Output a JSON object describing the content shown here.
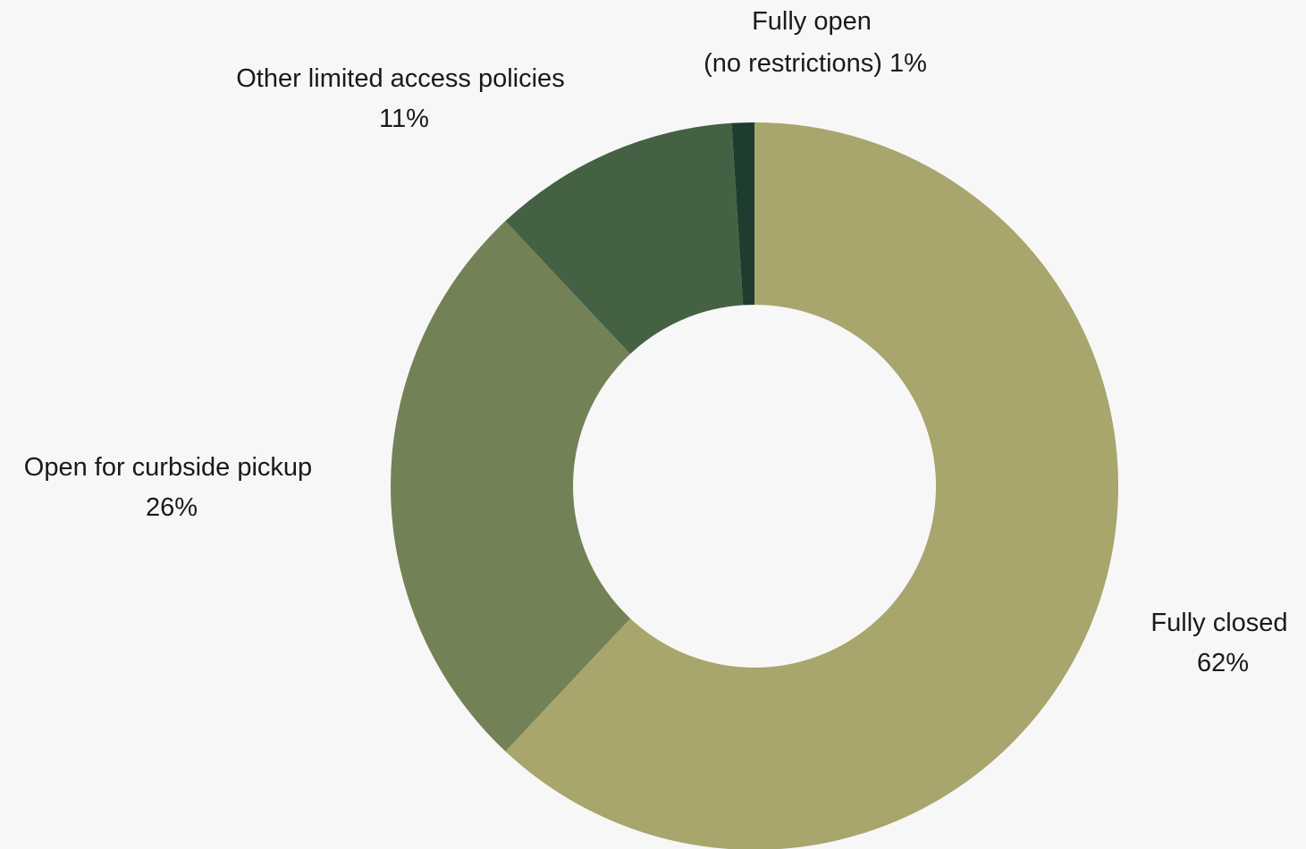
{
  "chart_data": {
    "type": "pie",
    "donut": true,
    "title": "",
    "colors": {
      "Fully closed": "#a8a56d",
      "Open for curbside pickup": "#738156",
      "Other limited access policies": "#446144",
      "Fully open (no restrictions)": "#1f3d2f"
    },
    "slices": [
      {
        "name": "Fully closed",
        "value": 62,
        "label_lines": [
          "Fully closed",
          "62%"
        ]
      },
      {
        "name": "Open for curbside pickup",
        "value": 26,
        "label_lines": [
          "Open for curbside pickup",
          "26%"
        ]
      },
      {
        "name": "Other limited access policies",
        "value": 11,
        "label_lines": [
          "Other limited access policies",
          "11%"
        ]
      },
      {
        "name": "Fully open (no restrictions)",
        "value": 1,
        "label_lines": [
          "Fully open",
          "(no restrictions) 1%"
        ]
      }
    ]
  }
}
